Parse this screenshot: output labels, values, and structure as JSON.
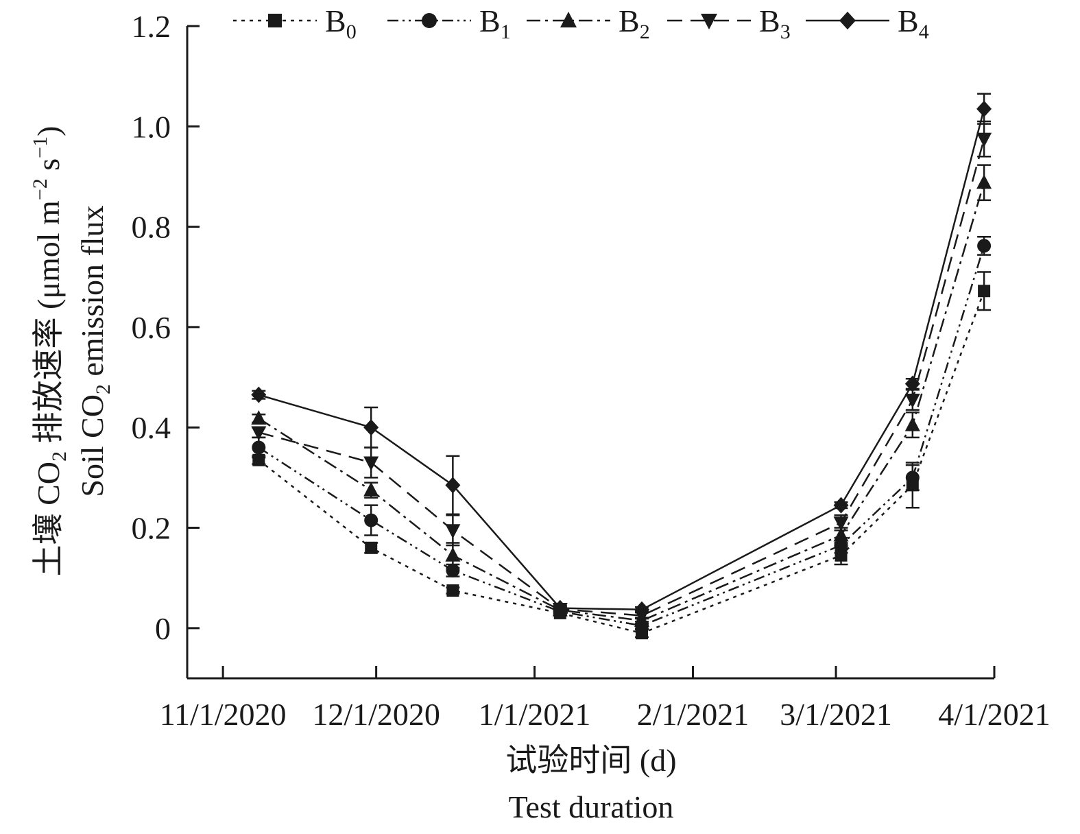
{
  "chart_data": {
    "type": "line",
    "x_tick_labels": [
      "11/1/2020",
      "12/1/2020",
      "1/1/2021",
      "2/1/2021",
      "3/1/2021",
      "4/1/2021"
    ],
    "x_ticks": [
      "2020-11-01",
      "2020-12-01",
      "2021-01-01",
      "2021-02-01",
      "2021-03-01",
      "2021-04-01"
    ],
    "xlim": [
      "2020-10-25",
      "2021-04-01"
    ],
    "x": [
      "2020-11-08",
      "2020-11-30",
      "2020-12-16",
      "2021-01-06",
      "2021-01-22",
      "2021-03-02",
      "2021-03-16",
      "2021-03-30"
    ],
    "ylim": [
      -0.1,
      1.2
    ],
    "y_ticks": [
      0,
      0.2,
      0.4,
      0.6,
      0.8,
      1.0,
      1.2
    ],
    "y_tick_labels": [
      "0",
      "0.2",
      "0.4",
      "0.6",
      "0.8",
      "1.0",
      "1.2"
    ],
    "xlabel_cn": "试验时间 (d)",
    "xlabel_en": "Test duration",
    "ylabel_cn": "土壤 CO",
    "ylabel_cn_sub": "2",
    "ylabel_cn_rest": " 排放速率 (μmol m",
    "ylabel_cn_sup1": "−2",
    "ylabel_cn_mid": " s",
    "ylabel_cn_sup2": "−1",
    "ylabel_cn_end": ")",
    "ylabel_en": "Soil CO",
    "ylabel_en_sub": "2",
    "ylabel_en_rest": " emission flux",
    "legend_position": "top",
    "series": [
      {
        "name": "B",
        "sub": "0",
        "marker": "square",
        "dash": "dotted",
        "values": [
          0.335,
          0.16,
          0.075,
          0.03,
          -0.01,
          0.145,
          0.285,
          0.672
        ],
        "errors": [
          0.008,
          0.01,
          0.006,
          0.005,
          0.008,
          0.018,
          0.045,
          0.038
        ]
      },
      {
        "name": "B",
        "sub": "1",
        "marker": "circle",
        "dash": "dash-dot-dot",
        "values": [
          0.36,
          0.215,
          0.115,
          0.033,
          0.005,
          0.165,
          0.3,
          0.762
        ],
        "errors": [
          0.02,
          0.03,
          0.012,
          0.005,
          0.008,
          0.015,
          0.025,
          0.018
        ]
      },
      {
        "name": "B",
        "sub": "2",
        "marker": "triangle-up",
        "dash": "dash-dot",
        "values": [
          0.418,
          0.275,
          0.145,
          0.036,
          0.015,
          0.185,
          0.405,
          0.888
        ],
        "errors": [
          0.008,
          0.015,
          0.025,
          0.005,
          0.006,
          0.015,
          0.025,
          0.035
        ]
      },
      {
        "name": "B",
        "sub": "3",
        "marker": "triangle-down",
        "dash": "dashed",
        "values": [
          0.39,
          0.33,
          0.195,
          0.038,
          0.025,
          0.21,
          0.455,
          0.975
        ],
        "errors": [
          0.01,
          0.03,
          0.03,
          0.005,
          0.006,
          0.015,
          0.02,
          0.035
        ]
      },
      {
        "name": "B",
        "sub": "4",
        "marker": "diamond",
        "dash": "solid",
        "values": [
          0.465,
          0.4,
          0.285,
          0.04,
          0.037,
          0.245,
          0.487,
          1.035
        ],
        "errors": [
          0.008,
          0.04,
          0.058,
          0.005,
          0.005,
          0.006,
          0.01,
          0.03
        ]
      }
    ]
  }
}
